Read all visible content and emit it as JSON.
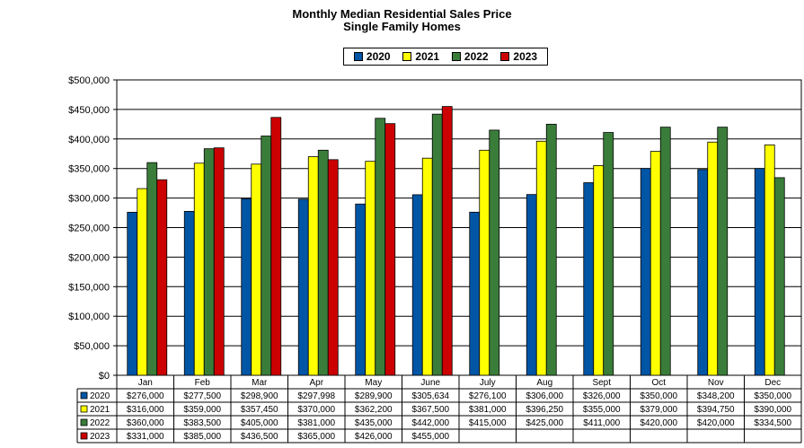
{
  "chart_data": {
    "type": "bar",
    "title": "Monthly Median Residential Sales Price",
    "subtitle": "Single Family Homes",
    "categories": [
      "Jan",
      "Feb",
      "Mar",
      "Apr",
      "May",
      "June",
      "July",
      "Aug",
      "Sept",
      "Oct",
      "Nov",
      "Dec"
    ],
    "ylim": [
      0,
      500000
    ],
    "yticks": [
      "$0",
      "$50,000",
      "$100,000",
      "$150,000",
      "$200,000",
      "$250,000",
      "$300,000",
      "$350,000",
      "$400,000",
      "$450,000",
      "$500,000"
    ],
    "grid": true,
    "legend_position": "top-center",
    "series": [
      {
        "name": "2020",
        "color": "#0055a5",
        "values": [
          276000,
          277500,
          298900,
          297998,
          289900,
          305634,
          276100,
          306000,
          326000,
          350000,
          348200,
          350000
        ],
        "labels": [
          "$276,000",
          "$277,500",
          "$298,900",
          "$297,998",
          "$289,900",
          "$305,634",
          "$276,100",
          "$306,000",
          "$326,000",
          "$350,000",
          "$348,200",
          "$350,000"
        ]
      },
      {
        "name": "2021",
        "color": "#ffff00",
        "values": [
          316000,
          359000,
          357450,
          370000,
          362200,
          367500,
          381000,
          396250,
          355000,
          379000,
          394750,
          390000
        ],
        "labels": [
          "$316,000",
          "$359,000",
          "$357,450",
          "$370,000",
          "$362,200",
          "$367,500",
          "$381,000",
          "$396,250",
          "$355,000",
          "$379,000",
          "$394,750",
          "$390,000"
        ]
      },
      {
        "name": "2022",
        "color": "#3a7d3a",
        "values": [
          360000,
          383500,
          405000,
          381000,
          435000,
          442000,
          415000,
          425000,
          411000,
          420000,
          420000,
          334500
        ],
        "labels": [
          "$360,000",
          "$383,500",
          "$405,000",
          "$381,000",
          "$435,000",
          "$442,000",
          "$415,000",
          "$425,000",
          "$411,000",
          "$420,000",
          "$420,000",
          "$334,500"
        ]
      },
      {
        "name": "2023",
        "color": "#cc0000",
        "values": [
          331000,
          385000,
          436500,
          365000,
          426000,
          455000,
          null,
          null,
          null,
          null,
          null,
          null
        ],
        "labels": [
          "$331,000",
          "$385,000",
          "$436,500",
          "$365,000",
          "$426,000",
          "$455,000",
          "",
          "",
          "",
          "",
          "",
          ""
        ]
      }
    ]
  }
}
